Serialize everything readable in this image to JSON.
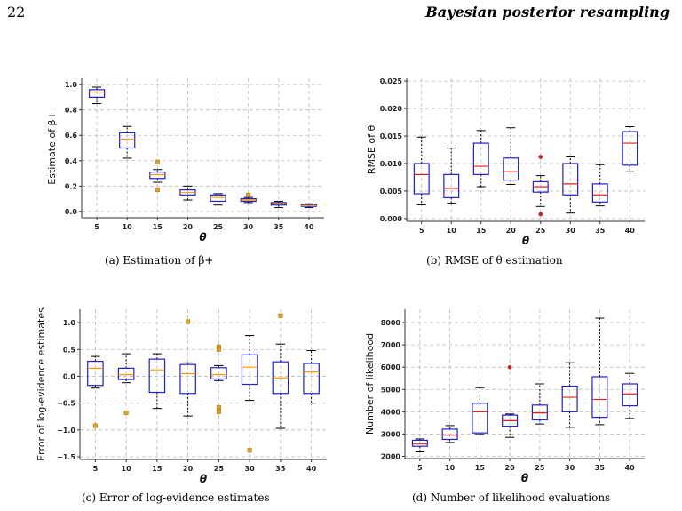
{
  "header": {
    "page_number": "22",
    "running_title": "Bayesian posterior resampling"
  },
  "colors": {
    "box": "#1f1fd6",
    "median_orange": "#ff9900",
    "median_red": "#e8201a",
    "outlier_orange": "#e0a020",
    "outlier_red": "#cc2020",
    "grid": "#bcbcbc"
  },
  "chart_data": [
    {
      "type": "box",
      "caption": "(a) Estimation of β+",
      "ylabel": "Estimate of β+",
      "xlabel": "θ",
      "ylim": [
        -0.05,
        1.05
      ],
      "yticks": [
        "0.0",
        "0.2",
        "0.4",
        "0.6",
        "0.8",
        "1.0"
      ],
      "ytick_values": [
        0.0,
        0.2,
        0.4,
        0.6,
        0.8,
        1.0
      ],
      "categories": [
        "5",
        "10",
        "15",
        "20",
        "25",
        "30",
        "35",
        "40"
      ],
      "median_color": "orange",
      "boxes": [
        {
          "whislo": 0.85,
          "q1": 0.9,
          "med": 0.94,
          "q3": 0.96,
          "whishi": 0.98,
          "fliers": []
        },
        {
          "whislo": 0.42,
          "q1": 0.5,
          "med": 0.57,
          "q3": 0.62,
          "whishi": 0.67,
          "fliers": []
        },
        {
          "whislo": 0.23,
          "q1": 0.26,
          "med": 0.29,
          "q3": 0.31,
          "whishi": 0.33,
          "fliers": [
            0.39,
            0.17
          ]
        },
        {
          "whislo": 0.09,
          "q1": 0.13,
          "med": 0.15,
          "q3": 0.17,
          "whishi": 0.2,
          "fliers": []
        },
        {
          "whislo": 0.05,
          "q1": 0.08,
          "med": 0.11,
          "q3": 0.13,
          "whishi": 0.14,
          "fliers": []
        },
        {
          "whislo": 0.07,
          "q1": 0.08,
          "med": 0.09,
          "q3": 0.1,
          "whishi": 0.11,
          "fliers": [
            0.13
          ]
        },
        {
          "whislo": 0.03,
          "q1": 0.05,
          "med": 0.06,
          "q3": 0.07,
          "whishi": 0.08,
          "fliers": []
        },
        {
          "whislo": 0.03,
          "q1": 0.04,
          "med": 0.045,
          "q3": 0.05,
          "whishi": 0.06,
          "fliers": []
        }
      ],
      "grid": true
    },
    {
      "type": "box",
      "caption": "(b) RMSE of θ estimation",
      "ylabel": "RMSE of θ",
      "xlabel": "θ",
      "ylim": [
        -0.0005,
        0.0255
      ],
      "yticks": [
        "0.000",
        "0.005",
        "0.010",
        "0.015",
        "0.020",
        "0.025"
      ],
      "ytick_values": [
        0.0,
        0.005,
        0.01,
        0.015,
        0.02,
        0.025
      ],
      "categories": [
        "5",
        "10",
        "15",
        "20",
        "25",
        "30",
        "35",
        "40"
      ],
      "median_color": "red",
      "boxes": [
        {
          "whislo": 0.0025,
          "q1": 0.0045,
          "med": 0.008,
          "q3": 0.01,
          "whishi": 0.0148,
          "fliers": []
        },
        {
          "whislo": 0.0028,
          "q1": 0.0038,
          "med": 0.0055,
          "q3": 0.008,
          "whishi": 0.0128,
          "fliers": []
        },
        {
          "whislo": 0.0058,
          "q1": 0.008,
          "med": 0.0095,
          "q3": 0.0137,
          "whishi": 0.016,
          "fliers": []
        },
        {
          "whislo": 0.0062,
          "q1": 0.007,
          "med": 0.0085,
          "q3": 0.011,
          "whishi": 0.0165,
          "fliers": []
        },
        {
          "whislo": 0.0022,
          "q1": 0.0048,
          "med": 0.0058,
          "q3": 0.0067,
          "whishi": 0.0078,
          "fliers": [
            0.0112,
            0.0008
          ]
        },
        {
          "whislo": 0.001,
          "q1": 0.0043,
          "med": 0.0063,
          "q3": 0.01,
          "whishi": 0.0112,
          "fliers": []
        },
        {
          "whislo": 0.0023,
          "q1": 0.003,
          "med": 0.0043,
          "q3": 0.0063,
          "whishi": 0.0098,
          "fliers": []
        },
        {
          "whislo": 0.0085,
          "q1": 0.0097,
          "med": 0.0137,
          "q3": 0.0158,
          "whishi": 0.0167,
          "fliers": []
        }
      ],
      "grid": true
    },
    {
      "type": "box",
      "caption": "(c) Error of log-evidence estimates",
      "ylabel": "Error of log-evidence estimates",
      "xlabel": "θ",
      "ylim": [
        -1.55,
        1.25
      ],
      "yticks": [
        "−1.5",
        "−1.0",
        "−0.5",
        "0.0",
        "0.5",
        "1.0"
      ],
      "ytick_values": [
        -1.5,
        -1.0,
        -0.5,
        0.0,
        0.5,
        1.0
      ],
      "categories": [
        "5",
        "10",
        "15",
        "20",
        "25",
        "30",
        "35",
        "40"
      ],
      "median_color": "orange",
      "boxes": [
        {
          "whislo": -0.22,
          "q1": -0.17,
          "med": 0.15,
          "q3": 0.28,
          "whishi": 0.37,
          "fliers": [
            -0.92
          ]
        },
        {
          "whislo": -0.12,
          "q1": -0.06,
          "med": 0.03,
          "q3": 0.15,
          "whishi": 0.42,
          "fliers": [
            -0.68
          ]
        },
        {
          "whislo": -0.6,
          "q1": -0.3,
          "med": 0.12,
          "q3": 0.32,
          "whishi": 0.42,
          "fliers": []
        },
        {
          "whislo": -0.74,
          "q1": -0.32,
          "med": 0.05,
          "q3": 0.22,
          "whishi": 0.25,
          "fliers": [
            1.02
          ]
        },
        {
          "whislo": -0.08,
          "q1": -0.05,
          "med": 0.03,
          "q3": 0.16,
          "whishi": 0.2,
          "fliers": [
            0.55,
            0.5,
            -0.58,
            -0.66
          ]
        },
        {
          "whislo": -0.45,
          "q1": -0.15,
          "med": 0.17,
          "q3": 0.4,
          "whishi": 0.76,
          "fliers": [
            -1.38
          ]
        },
        {
          "whislo": -0.97,
          "q1": -0.32,
          "med": -0.03,
          "q3": 0.27,
          "whishi": 0.6,
          "fliers": [
            1.13
          ]
        },
        {
          "whislo": -0.5,
          "q1": -0.32,
          "med": 0.08,
          "q3": 0.24,
          "whishi": 0.48,
          "fliers": []
        }
      ],
      "grid": true
    },
    {
      "type": "box",
      "caption": "(d) Number of likelihood evaluations",
      "ylabel": "Number of likelihood",
      "xlabel": "θ",
      "ylim": [
        1900,
        8600
      ],
      "yticks": [
        "2000",
        "3000",
        "4000",
        "5000",
        "6000",
        "7000",
        "8000"
      ],
      "ytick_values": [
        2000,
        3000,
        4000,
        5000,
        6000,
        7000,
        8000
      ],
      "categories": [
        "5",
        "10",
        "15",
        "20",
        "25",
        "30",
        "35",
        "40"
      ],
      "median_color": "red",
      "boxes": [
        {
          "whislo": 2200,
          "q1": 2450,
          "med": 2550,
          "q3": 2720,
          "whishi": 2780,
          "fliers": []
        },
        {
          "whislo": 2620,
          "q1": 2760,
          "med": 2950,
          "q3": 3220,
          "whishi": 3380,
          "fliers": []
        },
        {
          "whislo": 2980,
          "q1": 3050,
          "med": 4000,
          "q3": 4380,
          "whishi": 5080,
          "fliers": []
        },
        {
          "whislo": 2850,
          "q1": 3350,
          "med": 3600,
          "q3": 3850,
          "whishi": 3900,
          "fliers": [
            6000
          ]
        },
        {
          "whislo": 3450,
          "q1": 3640,
          "med": 3950,
          "q3": 4300,
          "whishi": 5250,
          "fliers": []
        },
        {
          "whislo": 3300,
          "q1": 4000,
          "med": 4650,
          "q3": 5150,
          "whishi": 6200,
          "fliers": []
        },
        {
          "whislo": 3420,
          "q1": 3750,
          "med": 4550,
          "q3": 5570,
          "whishi": 8200,
          "fliers": []
        },
        {
          "whislo": 3700,
          "q1": 4270,
          "med": 4800,
          "q3": 5250,
          "whishi": 5720,
          "fliers": []
        }
      ],
      "grid": true
    }
  ]
}
